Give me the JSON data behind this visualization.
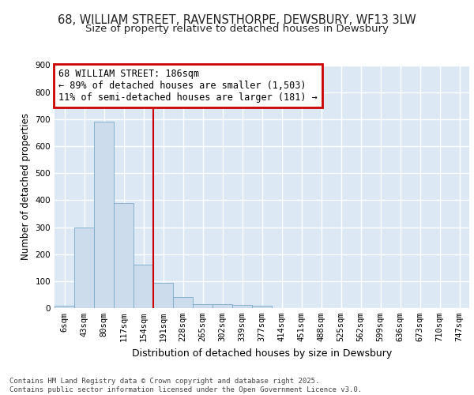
{
  "title_line1": "68, WILLIAM STREET, RAVENSTHORPE, DEWSBURY, WF13 3LW",
  "title_line2": "Size of property relative to detached houses in Dewsbury",
  "xlabel": "Distribution of detached houses by size in Dewsbury",
  "ylabel": "Number of detached properties",
  "bar_color": "#cddcec",
  "bar_edge_color": "#7aaac8",
  "background_color": "#dce9f5",
  "grid_color": "#ffffff",
  "bin_labels": [
    "6sqm",
    "43sqm",
    "80sqm",
    "117sqm",
    "154sqm",
    "191sqm",
    "228sqm",
    "265sqm",
    "302sqm",
    "339sqm",
    "377sqm",
    "414sqm",
    "451sqm",
    "488sqm",
    "525sqm",
    "562sqm",
    "599sqm",
    "636sqm",
    "673sqm",
    "710sqm",
    "747sqm"
  ],
  "bar_values": [
    8,
    300,
    690,
    390,
    160,
    93,
    40,
    15,
    15,
    12,
    10,
    0,
    0,
    0,
    0,
    0,
    0,
    0,
    0,
    0,
    0
  ],
  "vline_bin_index": 5,
  "vline_color": "#cc0000",
  "annotation_line1": "68 WILLIAM STREET: 186sqm",
  "annotation_line2": "← 89% of detached houses are smaller (1,503)",
  "annotation_line3": "11% of semi-detached houses are larger (181) →",
  "annotation_box_color": "#cc0000",
  "ylim": [
    0,
    900
  ],
  "yticks": [
    0,
    100,
    200,
    300,
    400,
    500,
    600,
    700,
    800,
    900
  ],
  "footnote": "Contains HM Land Registry data © Crown copyright and database right 2025.\nContains public sector information licensed under the Open Government Licence v3.0.",
  "title_fontsize": 10.5,
  "subtitle_fontsize": 9.5,
  "xlabel_fontsize": 9,
  "ylabel_fontsize": 8.5,
  "tick_fontsize": 7.5,
  "annotation_fontsize": 8.5,
  "footnote_fontsize": 6.5
}
